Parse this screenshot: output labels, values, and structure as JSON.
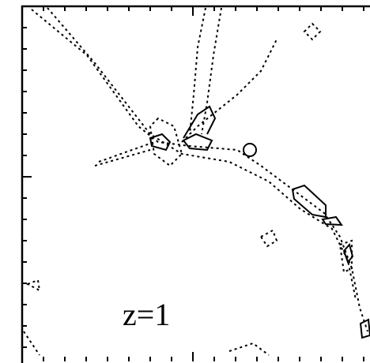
{
  "panel_label": "z=1"
}
